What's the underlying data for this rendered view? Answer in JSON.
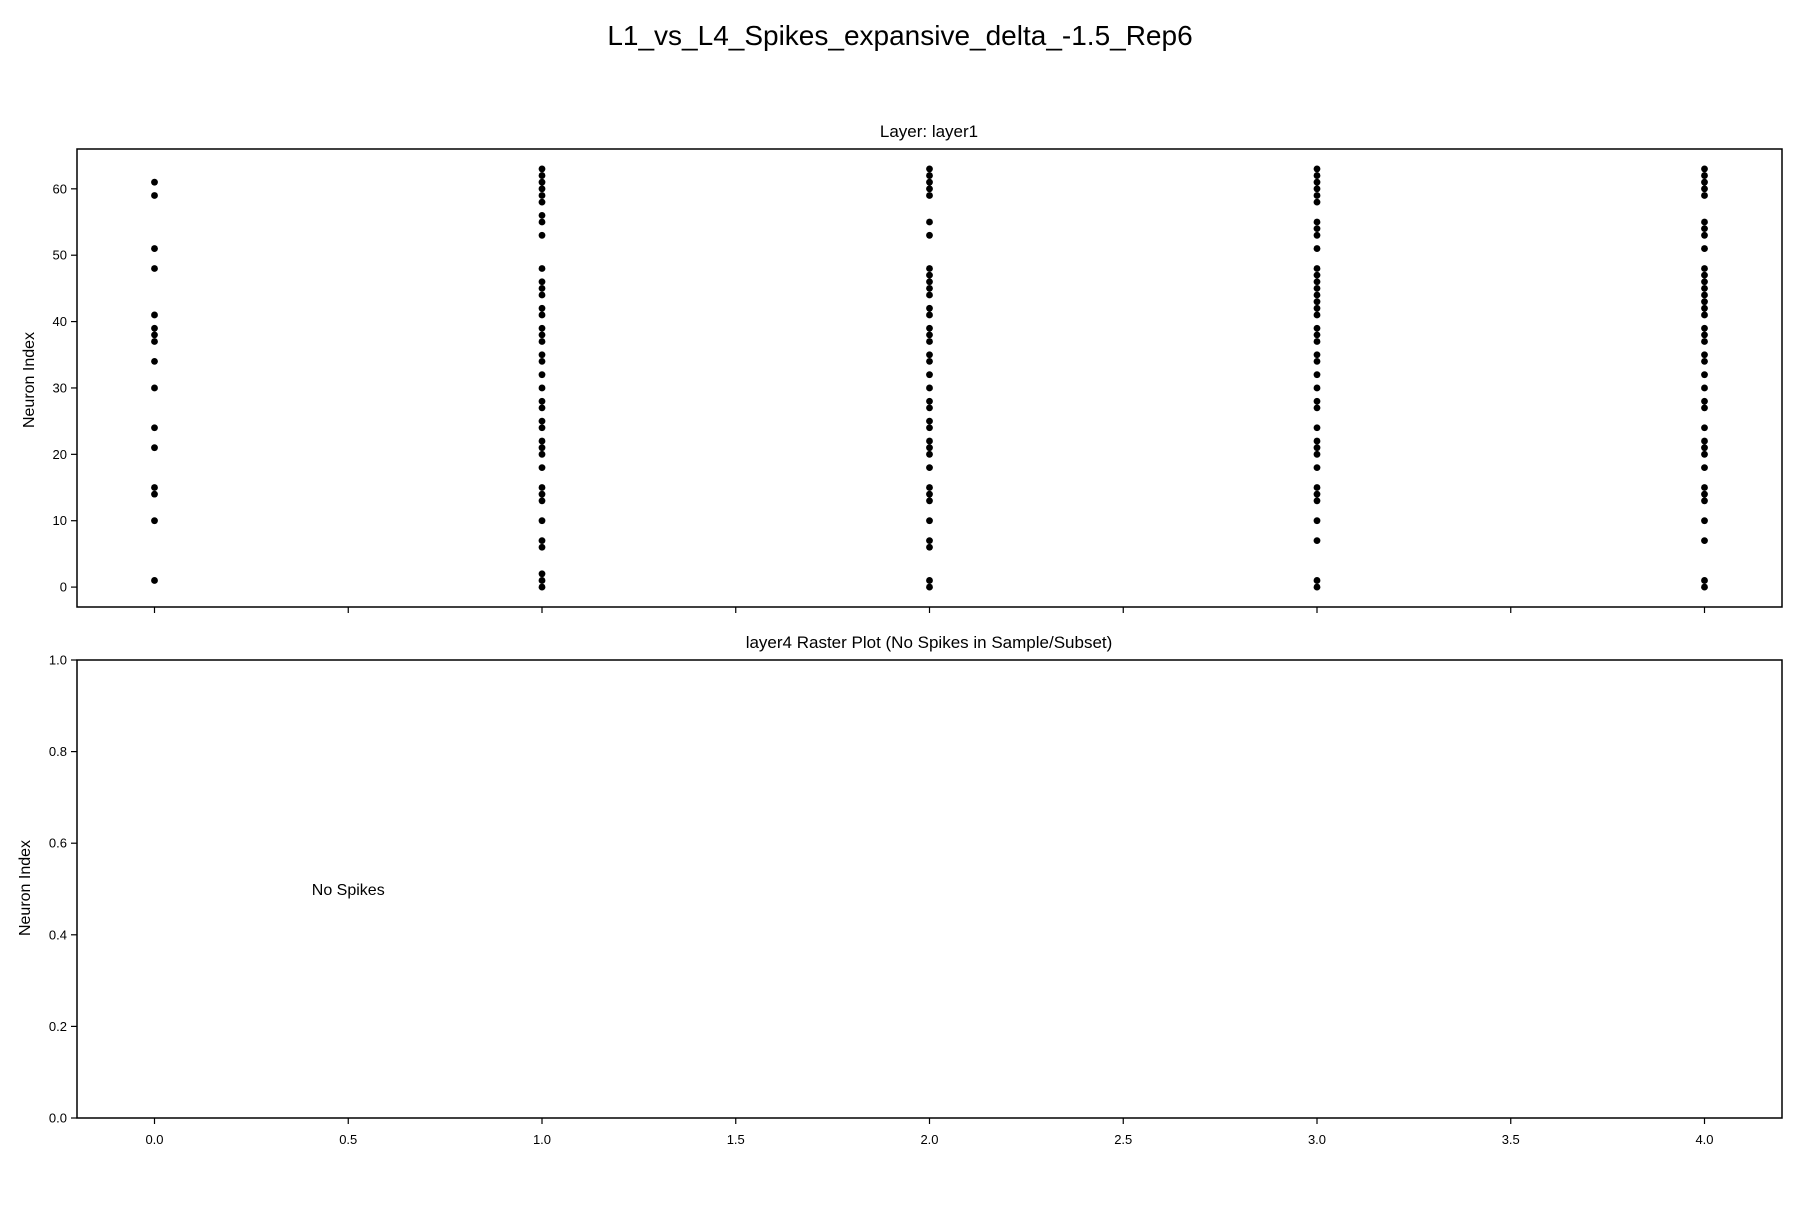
{
  "figure": {
    "title": "L1_vs_L4_Spikes_expansive_delta_-1.5_Rep6"
  },
  "chart_data": [
    {
      "type": "scatter",
      "title": "Layer: layer1",
      "xlabel": "",
      "ylabel": "Neuron Index",
      "xlim": [
        -0.2,
        4.2
      ],
      "ylim": [
        -3,
        66
      ],
      "x_ticks": [
        0,
        1,
        2,
        3,
        4
      ],
      "x_tick_labels": [
        "",
        "",
        "",
        "",
        ""
      ],
      "x_minor_ticks": [
        0.5,
        1.5,
        2.5,
        3.5
      ],
      "y_ticks": [
        0,
        10,
        20,
        30,
        40,
        50,
        60
      ],
      "y_tick_labels": [
        "0",
        "10",
        "20",
        "30",
        "40",
        "50",
        "60"
      ],
      "grid": false,
      "marker_color": "#000000",
      "spikes": [
        {
          "x": 0,
          "neurons": [
            1,
            10,
            14,
            15,
            21,
            24,
            30,
            34,
            37,
            38,
            39,
            41,
            48,
            51,
            59,
            61
          ]
        },
        {
          "x": 1,
          "neurons": [
            0,
            1,
            2,
            6,
            7,
            10,
            13,
            14,
            15,
            18,
            20,
            21,
            22,
            24,
            25,
            27,
            28,
            30,
            32,
            34,
            35,
            37,
            38,
            39,
            41,
            42,
            44,
            45,
            46,
            48,
            53,
            55,
            56,
            58,
            59,
            60,
            61,
            62,
            63
          ]
        },
        {
          "x": 2,
          "neurons": [
            0,
            1,
            6,
            7,
            10,
            13,
            14,
            15,
            18,
            20,
            21,
            22,
            24,
            25,
            27,
            28,
            30,
            32,
            34,
            35,
            37,
            38,
            39,
            41,
            42,
            44,
            45,
            46,
            47,
            48,
            53,
            55,
            59,
            60,
            61,
            62,
            63
          ]
        },
        {
          "x": 3,
          "neurons": [
            0,
            1,
            7,
            10,
            13,
            14,
            15,
            18,
            20,
            21,
            22,
            24,
            27,
            28,
            30,
            32,
            34,
            35,
            37,
            38,
            39,
            41,
            42,
            43,
            44,
            45,
            46,
            47,
            48,
            51,
            53,
            54,
            55,
            58,
            59,
            60,
            61,
            62,
            63
          ]
        },
        {
          "x": 4,
          "neurons": [
            0,
            1,
            7,
            10,
            13,
            14,
            15,
            18,
            20,
            21,
            22,
            24,
            27,
            28,
            30,
            32,
            34,
            35,
            37,
            38,
            39,
            41,
            42,
            43,
            44,
            45,
            46,
            47,
            48,
            51,
            53,
            54,
            55,
            59,
            60,
            61,
            62,
            63
          ]
        }
      ]
    },
    {
      "type": "scatter",
      "title": "layer4 Raster Plot (No Spikes in Sample/Subset)",
      "xlabel": "",
      "ylabel": "Neuron Index",
      "xlim": [
        -0.2,
        4.2
      ],
      "ylim": [
        0,
        1
      ],
      "x_ticks": [
        0,
        0.5,
        1,
        1.5,
        2,
        2.5,
        3,
        3.5,
        4
      ],
      "x_tick_labels": [
        "0.0",
        "0.5",
        "1.0",
        "1.5",
        "2.0",
        "2.5",
        "3.0",
        "3.5",
        "4.0"
      ],
      "y_ticks": [
        0,
        0.2,
        0.4,
        0.6,
        0.8,
        1.0
      ],
      "y_tick_labels": [
        "0.0",
        "0.2",
        "0.4",
        "0.6",
        "0.8",
        "1.0"
      ],
      "grid": false,
      "annotation": {
        "text": "No Spikes",
        "x": 0.5,
        "y": 0.5
      },
      "spikes": []
    }
  ]
}
